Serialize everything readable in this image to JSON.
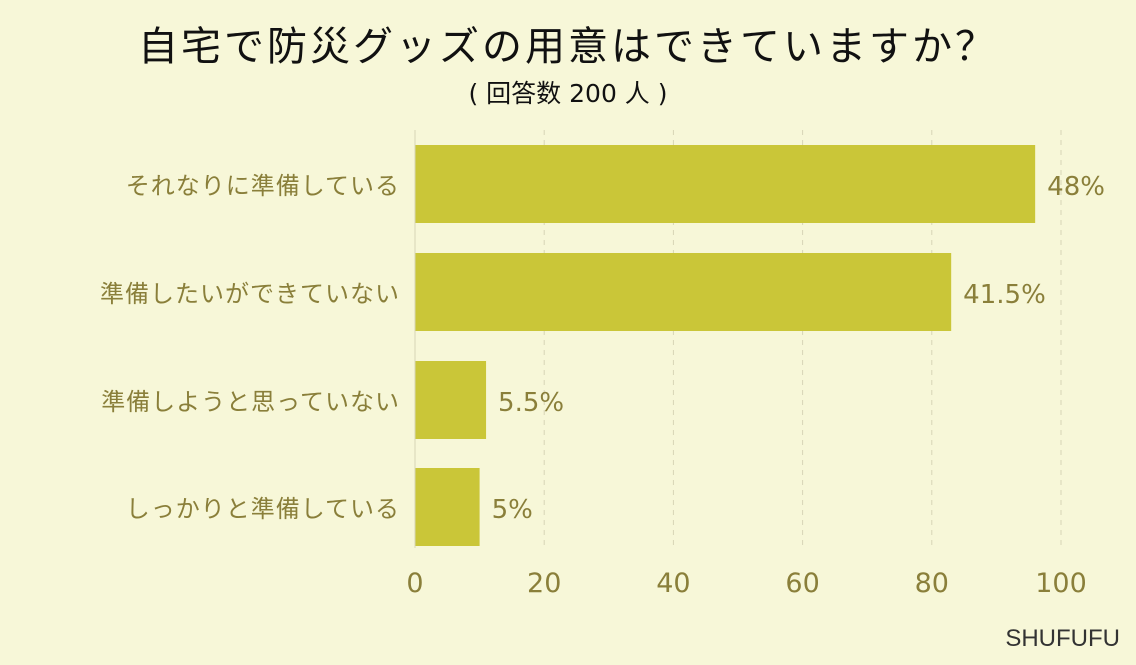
{
  "title": "自宅で防災グッズの用意はできていますか？",
  "subtitle": "( 回答数 200 人 )",
  "brand": "SHUFUFU",
  "colors": {
    "bar": "#cac638",
    "label": "#8a7f3a",
    "grid": "#d7d5b6",
    "background": "#f7f7d8"
  },
  "chart_data": {
    "type": "bar",
    "orientation": "horizontal",
    "categories": [
      "それなりに準備している",
      "準備したいができていない",
      "準備しようと思っていない",
      "しっかりと準備している"
    ],
    "values": [
      96,
      83,
      11,
      10
    ],
    "data_labels": [
      "48%",
      "41.5%",
      "5.5%",
      "5%"
    ],
    "xlim": [
      0,
      100
    ],
    "xticks": [
      0,
      20,
      40,
      60,
      80,
      100
    ],
    "xlabel": "",
    "ylabel": "",
    "grid": "vertical dashed"
  }
}
